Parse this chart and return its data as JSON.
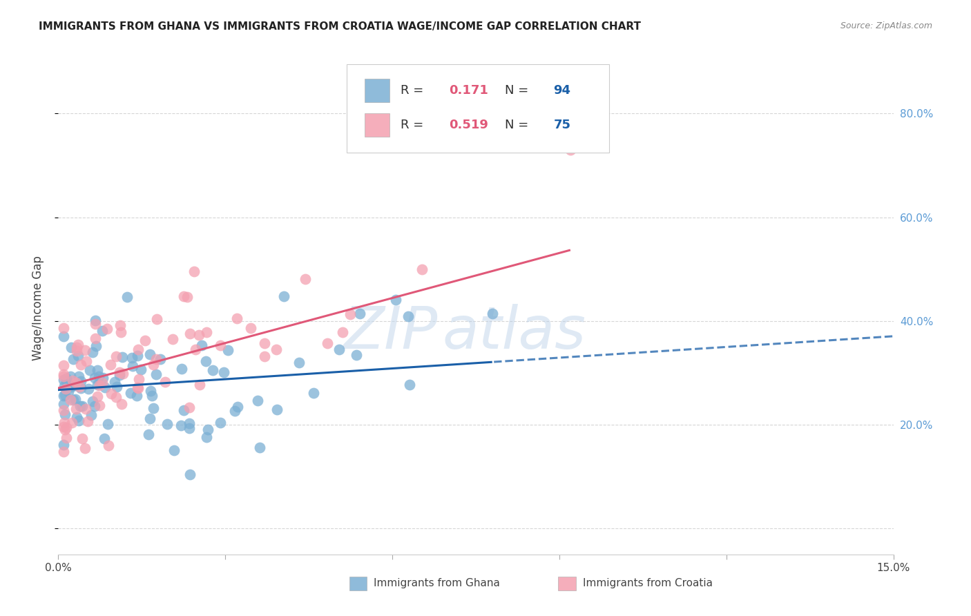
{
  "title": "IMMIGRANTS FROM GHANA VS IMMIGRANTS FROM CROATIA WAGE/INCOME GAP CORRELATION CHART",
  "source": "Source: ZipAtlas.com",
  "ylabel": "Wage/Income Gap",
  "xlim": [
    0.0,
    0.15
  ],
  "ylim": [
    -0.05,
    0.9
  ],
  "ghana_color": "#7bafd4",
  "croatia_color": "#f4a0b0",
  "ghana_line_color": "#1a5fa8",
  "croatia_line_color": "#e05878",
  "ghana_R": 0.171,
  "ghana_N": 94,
  "croatia_R": 0.519,
  "croatia_N": 75,
  "legend_R_color": "#e05878",
  "legend_N_color": "#1a5fa8",
  "watermark_zip": "ZIP",
  "watermark_atlas": "atlas",
  "background_color": "#ffffff",
  "grid_color": "#cccccc",
  "right_ytick_color": "#5b9bd5",
  "ghana_seed": 42,
  "croatia_seed": 99
}
